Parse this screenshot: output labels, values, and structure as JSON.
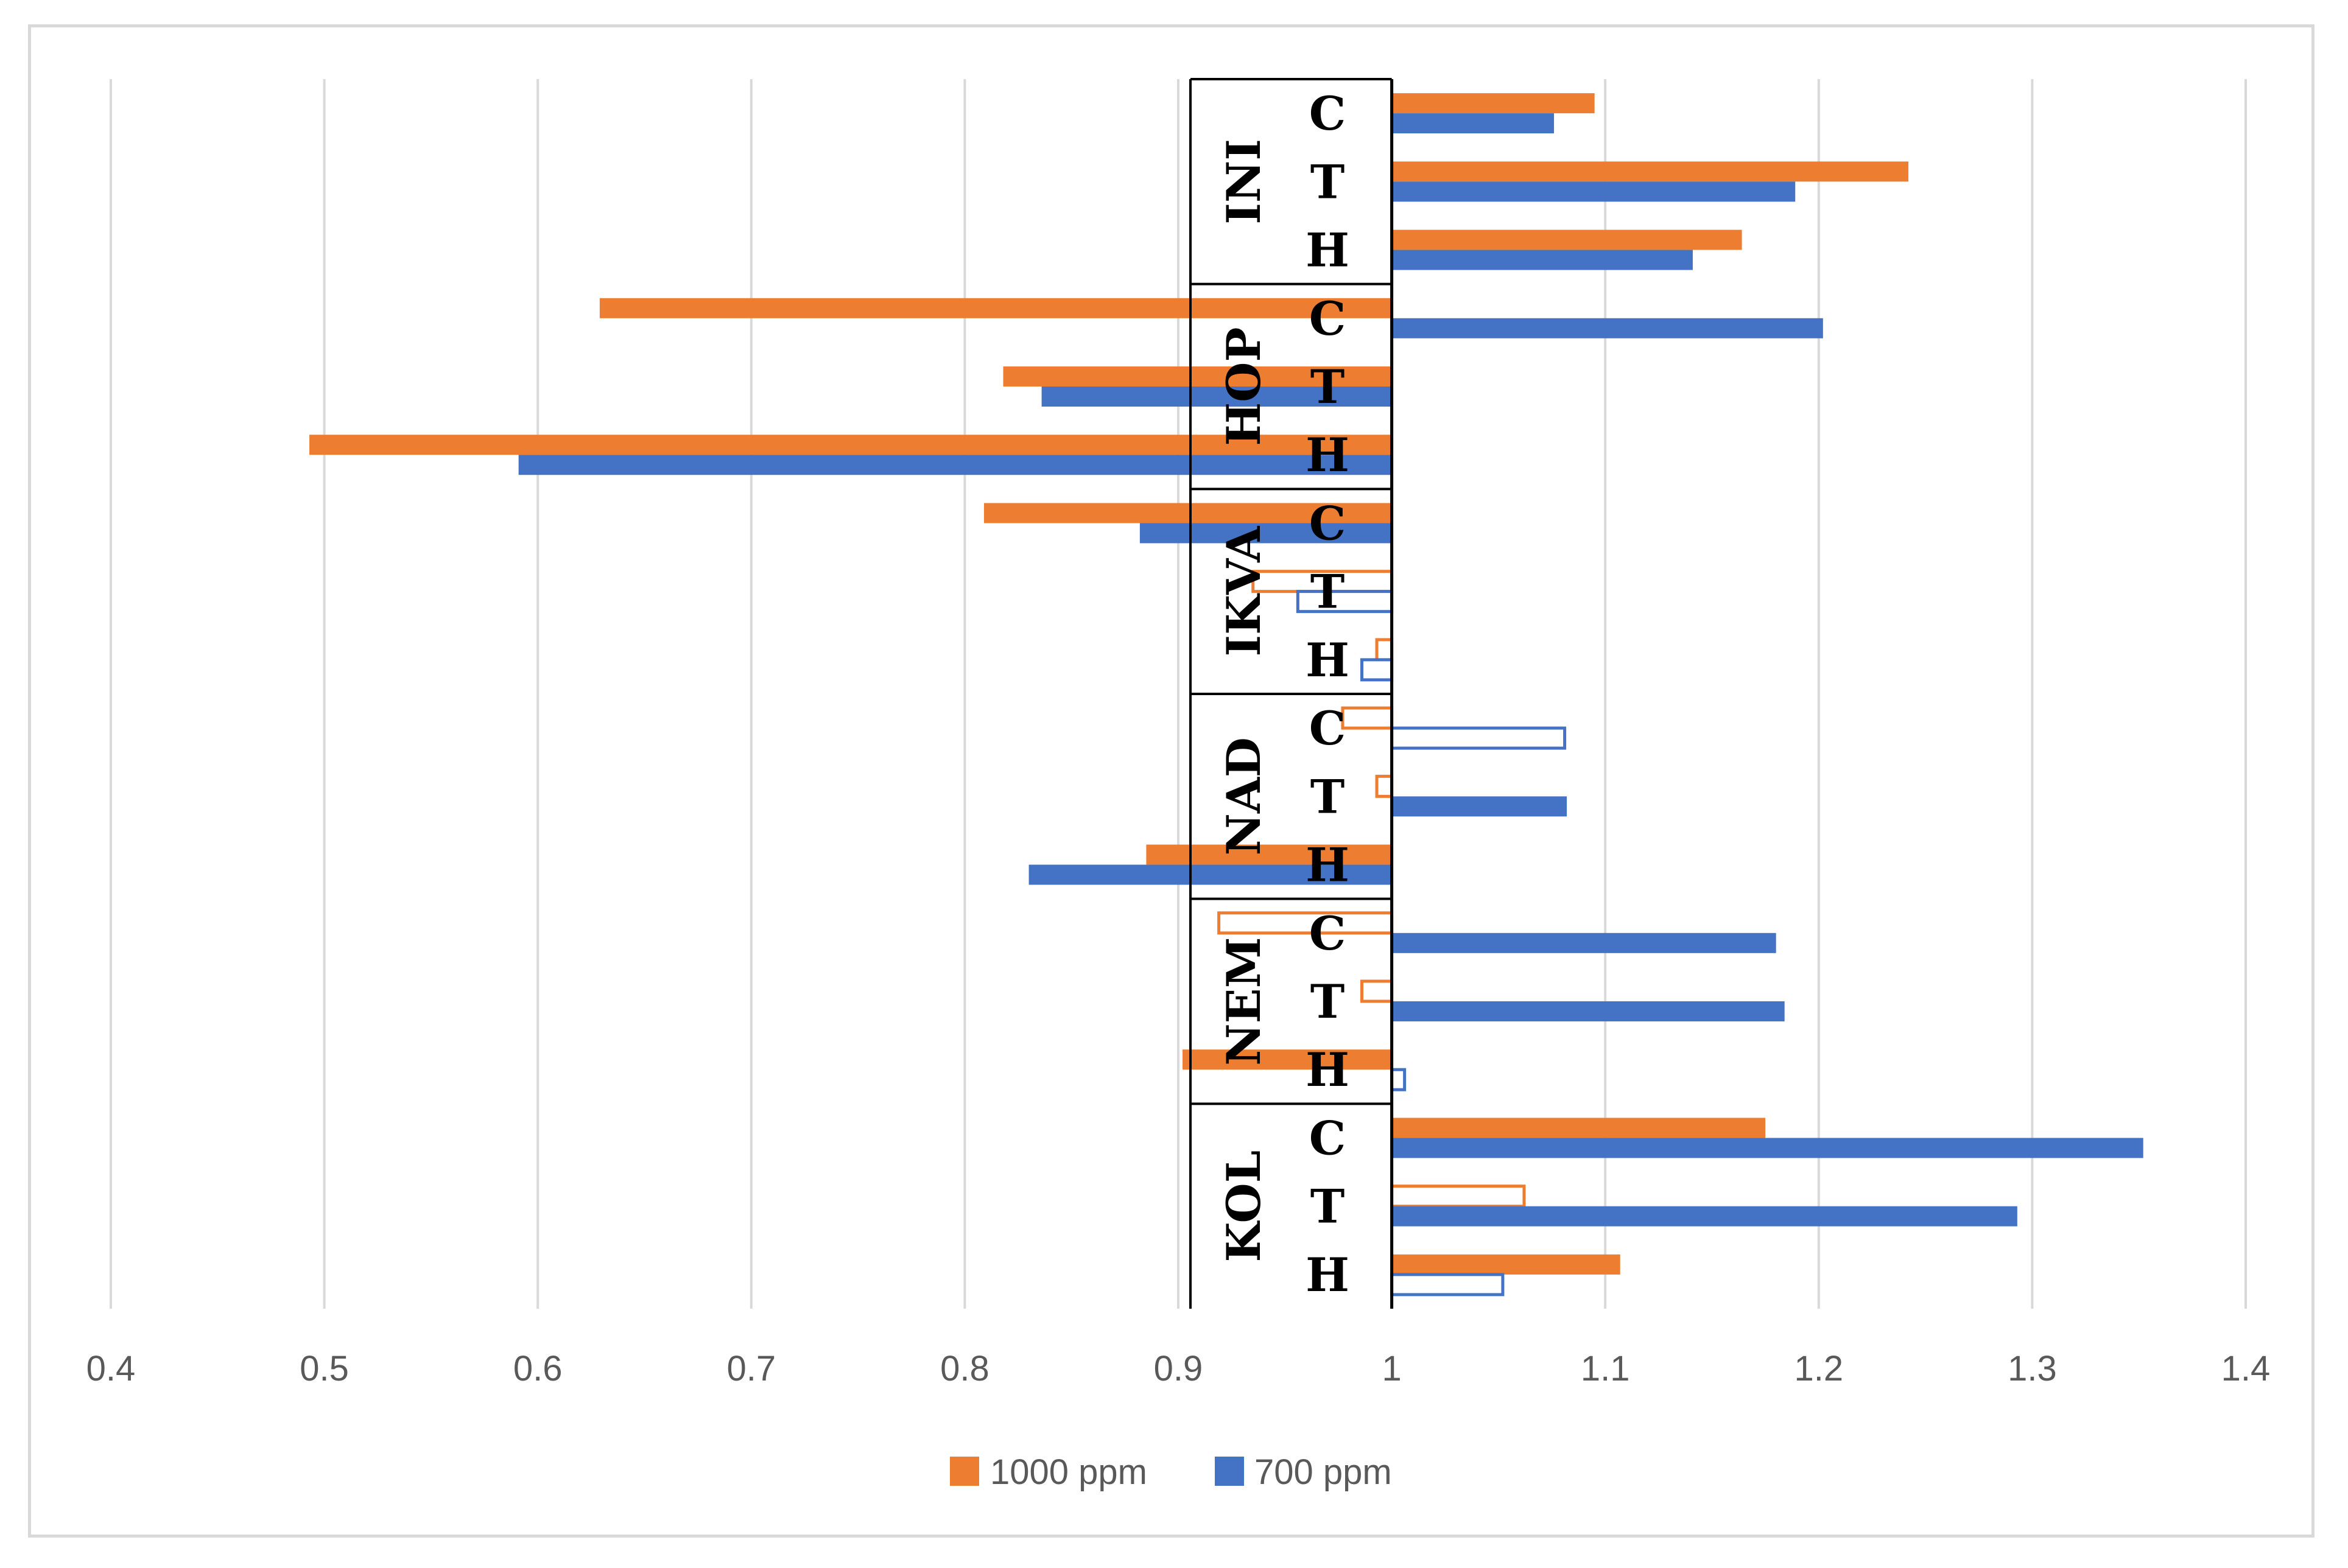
{
  "chart_data": {
    "type": "bar",
    "orientation": "horizontal",
    "baseline": 1,
    "xlim": [
      0.4,
      1.4
    ],
    "x_ticks": [
      "0.4",
      "0.5",
      "0.6",
      "0.7",
      "0.8",
      "0.9",
      "1",
      "1.1",
      "1.2",
      "1.3",
      "1.4"
    ],
    "grid": true,
    "legend_position": "bottom",
    "colors": {
      "1000 ppm": "#ed7d31",
      "700 ppm": "#4472c4"
    },
    "groups": [
      {
        "name": "INI",
        "categories": [
          "C",
          "T",
          "H"
        ],
        "1000 ppm": [
          1.095,
          1.242,
          1.164
        ],
        "700 ppm": [
          1.076,
          1.189,
          1.141
        ],
        "outlined_1000": [
          false,
          false,
          false
        ],
        "outlined_700": [
          false,
          false,
          false
        ]
      },
      {
        "name": "HOP",
        "categories": [
          "C",
          "T",
          "H"
        ],
        "1000 ppm": [
          0.629,
          0.818,
          0.493
        ],
        "700 ppm": [
          1.202,
          0.836,
          0.591
        ],
        "outlined_1000": [
          false,
          false,
          false
        ],
        "outlined_700": [
          false,
          false,
          false
        ]
      },
      {
        "name": "IKVA",
        "categories": [
          "C",
          "T",
          "H"
        ],
        "1000 ppm": [
          0.809,
          0.935,
          0.993
        ],
        "700 ppm": [
          0.882,
          0.956,
          0.986
        ],
        "outlined_1000": [
          false,
          true,
          true
        ],
        "outlined_700": [
          false,
          true,
          true
        ]
      },
      {
        "name": "NAD",
        "categories": [
          "C",
          "T",
          "H"
        ],
        "1000 ppm": [
          0.977,
          0.993,
          0.885
        ],
        "700 ppm": [
          1.081,
          1.082,
          0.83
        ],
        "outlined_1000": [
          true,
          true,
          false
        ],
        "outlined_700": [
          true,
          false,
          false
        ]
      },
      {
        "name": "NEM",
        "categories": [
          "C",
          "T",
          "H"
        ],
        "1000 ppm": [
          0.919,
          0.986,
          0.902
        ],
        "700 ppm": [
          1.18,
          1.184,
          1.006
        ],
        "outlined_1000": [
          true,
          true,
          false
        ],
        "outlined_700": [
          false,
          false,
          true
        ]
      },
      {
        "name": "KOL",
        "categories": [
          "C",
          "T",
          "H"
        ],
        "1000 ppm": [
          1.175,
          1.062,
          1.107
        ],
        "700 ppm": [
          1.352,
          1.293,
          1.052
        ],
        "outlined_1000": [
          false,
          true,
          false
        ],
        "outlined_700": [
          false,
          false,
          true
        ]
      }
    ],
    "legend": [
      "1000 ppm",
      "700 ppm"
    ]
  }
}
